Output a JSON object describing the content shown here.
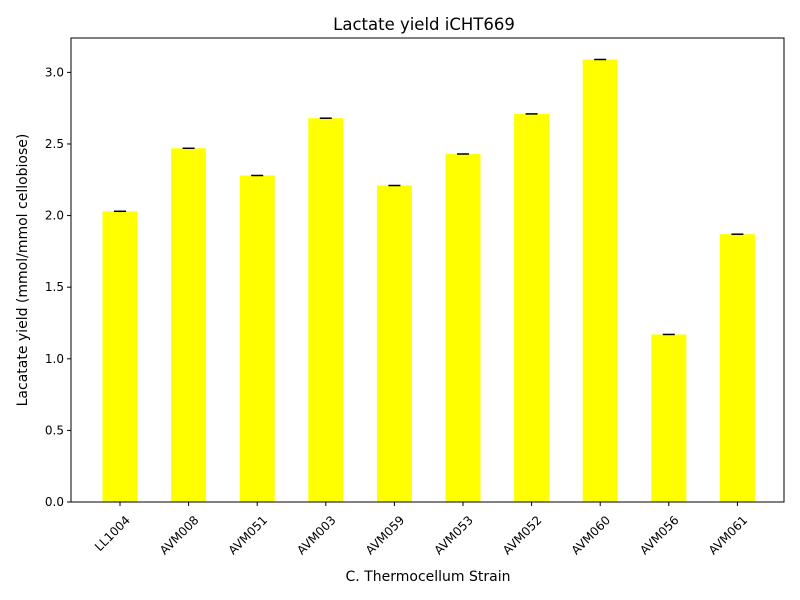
{
  "chart_data": {
    "type": "bar",
    "title": "Lactate yield iCHT669",
    "xlabel": "C. Thermocellum Strain",
    "ylabel": "Lacatate yield (mmol/mmol cellobiose)",
    "categories": [
      "LL1004",
      "AVM008",
      "AVM051",
      "AVM003",
      "AVM059",
      "AVM053",
      "AVM052",
      "AVM060",
      "AVM056",
      "AVM061"
    ],
    "values": [
      2.03,
      2.47,
      2.28,
      2.68,
      2.21,
      2.43,
      2.71,
      3.09,
      1.17,
      1.87
    ],
    "ylim": [
      0,
      3.24
    ],
    "yticks": [
      "0.0",
      "0.5",
      "1.0",
      "1.5",
      "2.0",
      "2.5",
      "3.0"
    ],
    "grid": false,
    "error_bars": true,
    "bar_color": "#ffff00",
    "error_color": "#000000"
  }
}
